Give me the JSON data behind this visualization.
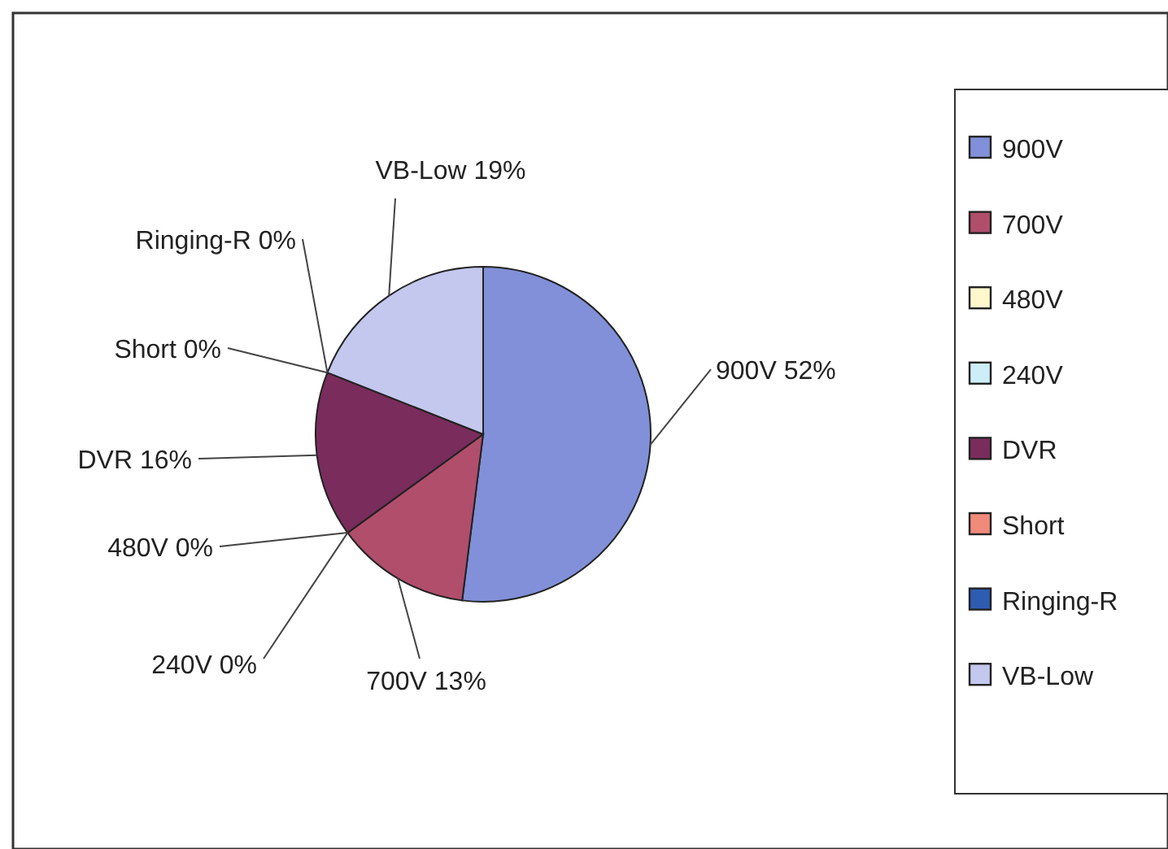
{
  "chart_data": {
    "type": "pie",
    "categories": [
      "900V",
      "700V",
      "480V",
      "240V",
      "DVR",
      "Short",
      "Ringing-R",
      "VB-Low"
    ],
    "values": [
      52,
      13,
      0,
      0,
      16,
      0,
      0,
      19
    ],
    "colors": [
      "#8190d8",
      "#b04e6c",
      "#fff8cc",
      "#cdeef8",
      "#7a2c5c",
      "#f08a7a",
      "#2e5cb0",
      "#c4c8ee"
    ],
    "value_labels": [
      "900V 52%",
      "700V 13%",
      "480V 0%",
      "240V 0%",
      "DVR 16%",
      "Short 0%",
      "Ringing-R 0%",
      "VB-Low 19%"
    ],
    "legend": "right"
  }
}
